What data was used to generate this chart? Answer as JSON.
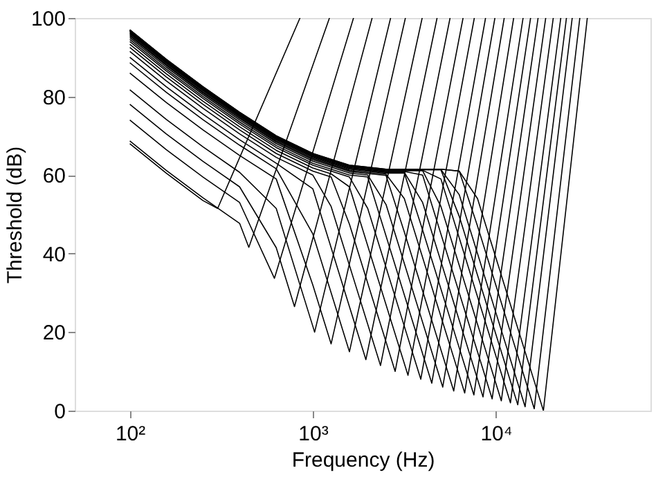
{
  "chart_data": {
    "type": "line",
    "xlabel": "Frequency (Hz)",
    "ylabel": "Threshold (dB)",
    "log": "x",
    "xlim": [
      50,
      70000
    ],
    "xticks": [
      {
        "value": 100,
        "label": "10²"
      },
      {
        "value": 1000,
        "label": "10³"
      },
      {
        "value": 10000,
        "label": "10⁴"
      }
    ],
    "ylim": [
      0,
      100
    ],
    "yticks": [
      0,
      20,
      40,
      60,
      80,
      100
    ],
    "grid": false,
    "legend": false,
    "marker": "none",
    "line_style": "solid",
    "series": [
      {
        "color": "#000000",
        "x": [
          100,
          158,
          251,
          302,
          851
        ],
        "values": [
          68,
          60.5,
          53.5,
          51.5,
          100
        ]
      },
      {
        "color": "#000000",
        "x": [
          100,
          158,
          251,
          398,
          447,
          1233
        ],
        "values": [
          68.7,
          61.2,
          54.2,
          47.7,
          41.6,
          100
        ]
      },
      {
        "color": "#000000",
        "x": [
          100,
          158,
          251,
          398,
          617,
          1669
        ],
        "values": [
          74,
          66.5,
          59.5,
          53,
          33.7,
          100
        ]
      },
      {
        "color": "#000000",
        "x": [
          100,
          158,
          251,
          398,
          631,
          794,
          2109
        ],
        "values": [
          78,
          70.5,
          63.5,
          57,
          41.5,
          26.5,
          100
        ]
      },
      {
        "color": "#000000",
        "x": [
          100,
          158,
          251,
          398,
          631,
          1000,
          1023,
          2661
        ],
        "values": [
          81.7,
          74.2,
          67.2,
          60.7,
          51.5,
          21.5,
          20,
          100
        ]
      },
      {
        "color": "#000000",
        "x": [
          100,
          158,
          251,
          398,
          631,
          1000,
          1259,
          3206
        ],
        "values": [
          86,
          78.5,
          71.5,
          65,
          59,
          32,
          17,
          100
        ]
      },
      {
        "color": "#000000",
        "x": [
          100,
          158,
          251,
          398,
          631,
          1000,
          1259,
          1585,
          3959
        ],
        "values": [
          88.6,
          81.1,
          74.1,
          67.6,
          61.6,
          45,
          30,
          15,
          100
        ]
      },
      {
        "color": "#000000",
        "x": [
          100,
          158,
          251,
          398,
          631,
          1000,
          1259,
          1585,
          1950,
          4775
        ],
        "values": [
          90,
          82.5,
          75.5,
          69,
          63,
          56.5,
          41.5,
          26.5,
          13,
          100
        ]
      },
      {
        "color": "#000000",
        "x": [
          100,
          158,
          251,
          398,
          631,
          1000,
          1259,
          1585,
          1995,
          2344,
          5623
        ],
        "values": [
          91.5,
          84,
          77,
          70.5,
          64.5,
          60,
          52,
          37,
          22,
          11.5,
          100
        ]
      },
      {
        "color": "#000000",
        "x": [
          100,
          158,
          251,
          398,
          631,
          1000,
          1259,
          1585,
          1995,
          2512,
          2818,
          6622
        ],
        "values": [
          92.5,
          85,
          78,
          71.5,
          65.5,
          61,
          59.5,
          47.5,
          32.5,
          17.5,
          10,
          100
        ]
      },
      {
        "color": "#000000",
        "x": [
          100,
          158,
          251,
          398,
          631,
          1000,
          1259,
          1585,
          1995,
          2512,
          3162,
          3311,
          7631
        ],
        "values": [
          93.3,
          85.8,
          78.8,
          72.3,
          66.3,
          61.8,
          60.3,
          57,
          42,
          27,
          12,
          9,
          100
        ]
      },
      {
        "color": "#000000",
        "x": [
          100,
          158,
          251,
          398,
          631,
          1000,
          1259,
          1585,
          1995,
          2512,
          3162,
          3890,
          8790
        ],
        "values": [
          94,
          86.5,
          79.5,
          73,
          67,
          62.5,
          61,
          59.5,
          51.5,
          36.5,
          21.5,
          8,
          100
        ]
      },
      {
        "color": "#000000",
        "x": [
          100,
          158,
          251,
          398,
          631,
          1000,
          1259,
          1585,
          1995,
          2512,
          3162,
          3981,
          4467,
          9886
        ],
        "values": [
          94.5,
          87,
          80,
          73.5,
          67.5,
          63,
          61.5,
          60,
          59.5,
          44.5,
          29.5,
          14.5,
          7,
          100
        ]
      },
      {
        "color": "#000000",
        "x": [
          100,
          158,
          251,
          398,
          631,
          1000,
          1259,
          1585,
          1995,
          2512,
          3162,
          3981,
          5012,
          5129,
          11117
        ],
        "values": [
          95,
          87.5,
          80.5,
          74,
          68,
          63.5,
          62,
          60.5,
          60,
          52.5,
          37.5,
          22.5,
          7.5,
          6,
          100
        ]
      },
      {
        "color": "#000000",
        "x": [
          100,
          158,
          251,
          398,
          631,
          1000,
          1259,
          1585,
          1995,
          2512,
          3162,
          3981,
          5012,
          5888,
          12520
        ],
        "values": [
          95.4,
          87.9,
          80.9,
          74.4,
          68.4,
          63.9,
          62.4,
          60.9,
          60.4,
          59.9,
          45.5,
          30.5,
          15.5,
          5,
          100
        ]
      },
      {
        "color": "#000000",
        "x": [
          100,
          158,
          251,
          398,
          631,
          1000,
          1259,
          1585,
          1995,
          2512,
          3162,
          3981,
          5012,
          6310,
          6761,
          14093
        ],
        "values": [
          95.7,
          88.2,
          81.2,
          74.7,
          68.7,
          64.2,
          62.7,
          61.2,
          60.7,
          60.2,
          54,
          39,
          24,
          9,
          4.5,
          100
        ]
      },
      {
        "color": "#000000",
        "x": [
          100,
          158,
          251,
          398,
          631,
          1000,
          1259,
          1585,
          1995,
          2512,
          3162,
          3981,
          5012,
          6310,
          7586,
          15488
        ],
        "values": [
          96,
          88.5,
          81.5,
          75,
          69,
          64.5,
          63,
          61.5,
          61,
          60.5,
          60.5,
          46,
          31,
          16,
          4,
          100
        ]
      },
      {
        "color": "#000000",
        "x": [
          100,
          158,
          251,
          398,
          631,
          1000,
          1259,
          1585,
          1995,
          2512,
          3162,
          3981,
          5012,
          6310,
          7943,
          8511,
          17022
        ],
        "values": [
          96.2,
          88.7,
          81.7,
          75.2,
          69.2,
          64.7,
          63.2,
          61.7,
          61.2,
          60.7,
          60.7,
          53,
          38,
          23,
          8,
          3.5,
          100
        ]
      },
      {
        "color": "#000000",
        "x": [
          100,
          158,
          251,
          398,
          631,
          1000,
          1259,
          1585,
          1995,
          2512,
          3162,
          3981,
          5012,
          6310,
          7943,
          9550,
          18737
        ],
        "values": [
          96.4,
          88.9,
          81.9,
          75.4,
          69.4,
          64.9,
          63.4,
          61.9,
          61.4,
          60.9,
          60.9,
          60,
          45,
          30,
          15,
          3,
          100
        ]
      },
      {
        "color": "#000000",
        "x": [
          100,
          158,
          251,
          398,
          631,
          1000,
          1259,
          1585,
          1995,
          2512,
          3162,
          3981,
          5012,
          6310,
          7943,
          10000,
          10715,
          20606
        ],
        "values": [
          96.6,
          89.1,
          82.1,
          75.6,
          69.6,
          65.1,
          63.6,
          62.1,
          61.6,
          61.1,
          61.1,
          61.1,
          52,
          37,
          22,
          7,
          2.5,
          100
        ]
      },
      {
        "color": "#000000",
        "x": [
          100,
          158,
          251,
          398,
          631,
          1000,
          1259,
          1585,
          1995,
          2512,
          3162,
          3981,
          5012,
          6310,
          7943,
          10000,
          12023,
          22646
        ],
        "values": [
          96.7,
          89.2,
          82.2,
          75.7,
          69.7,
          65.2,
          63.7,
          62.2,
          61.7,
          61.2,
          61.2,
          61.2,
          59,
          44,
          29,
          14,
          2,
          100
        ]
      },
      {
        "color": "#000000",
        "x": [
          100,
          158,
          251,
          398,
          631,
          1000,
          1259,
          1585,
          1995,
          2512,
          3162,
          3981,
          5012,
          6310,
          7943,
          10000,
          12589,
          13183,
          24322
        ],
        "values": [
          96.8,
          89.3,
          82.3,
          75.8,
          69.8,
          65.3,
          63.8,
          62.3,
          61.8,
          61.3,
          61.3,
          61.3,
          61.3,
          49.5,
          34.5,
          19.5,
          4.5,
          1.5,
          100
        ]
      },
      {
        "color": "#000000",
        "x": [
          100,
          158,
          251,
          398,
          631,
          1000,
          1259,
          1585,
          1995,
          2512,
          3162,
          3981,
          5012,
          6310,
          7943,
          10000,
          12589,
          14454,
          26153
        ],
        "values": [
          96.9,
          89.4,
          82.4,
          75.9,
          69.9,
          65.4,
          63.9,
          62.4,
          61.9,
          61.4,
          61.4,
          61.4,
          61.4,
          55,
          40,
          25,
          10,
          1,
          100
        ]
      },
      {
        "color": "#000000",
        "x": [
          100,
          158,
          251,
          398,
          631,
          1000,
          1259,
          1585,
          1995,
          2512,
          3162,
          3981,
          5012,
          6310,
          7943,
          10000,
          12589,
          15849,
          16218,
          28774
        ],
        "values": [
          97,
          89.5,
          82.5,
          76,
          70,
          65.5,
          64,
          62.5,
          62,
          61.5,
          61.5,
          61.5,
          61.5,
          61,
          47,
          32,
          17,
          2,
          0.5,
          100
        ]
      },
      {
        "color": "#000000",
        "x": [
          100,
          158,
          251,
          398,
          631,
          1000,
          1259,
          1585,
          1995,
          2512,
          3162,
          3981,
          5012,
          6310,
          7943,
          10000,
          12589,
          15849,
          18197,
          31623
        ],
        "values": [
          97,
          89.5,
          82.5,
          76,
          70,
          65.5,
          64,
          62.5,
          62,
          61.5,
          61.5,
          61.5,
          61.5,
          61,
          54,
          39,
          24,
          9,
          0,
          100
        ]
      }
    ]
  }
}
